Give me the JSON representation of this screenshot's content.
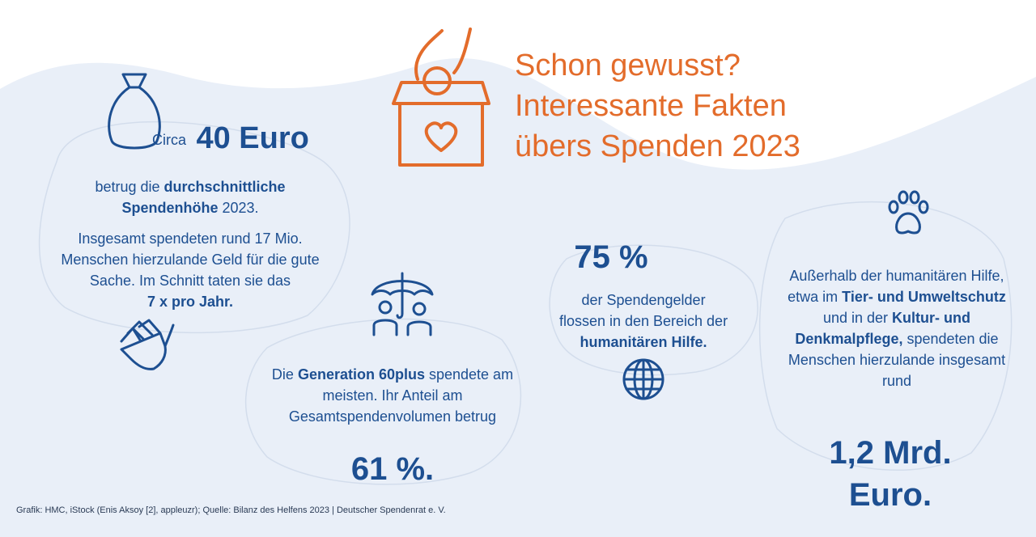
{
  "title": {
    "line1": "Schon gewusst?",
    "line2": "Interessante Fakten",
    "line3": "übers Spenden 2023"
  },
  "fact_average": {
    "prefix": "Circa",
    "amount": "40 Euro",
    "text_before": "betrug die ",
    "text_bold": "durchschnittliche Spendenhöhe",
    "text_after": " 2023.",
    "detail": "Insgesamt spendeten rund 17 Mio. Menschen hierzulande Geld für die gute Sache. Im Schnitt taten sie das",
    "detail_bold": "7 x pro Jahr."
  },
  "fact_generation": {
    "text_before": "Die ",
    "text_bold": "Generation 60plus",
    "text_after": " spendete am meisten. Ihr Anteil am Gesamtspendenvolumen betrug",
    "value": "61 %."
  },
  "fact_humanitarian": {
    "value": "75 %",
    "text_before": "der Spendengelder flossen in den Bereich der ",
    "text_bold": "humanitären Hilfe."
  },
  "fact_other": {
    "text_1": "Außerhalb der humanitären Hilfe, etwa im ",
    "bold_1": "Tier- und Umweltschutz",
    "text_2": " und in der ",
    "bold_2": "Kultur- und Denkmalpflege,",
    "text_3": " spendeten die Menschen hierzulande insgesamt rund",
    "value_line1": "1,2 Mrd.",
    "value_line2": "Euro."
  },
  "source": "Grafik: HMC, iStock (Enis Aksoy [2], appleuzr); Quelle: Bilanz des Helfens 2023 | Deutscher Spendenrat e. V.",
  "colors": {
    "accent_orange": "#e36c2b",
    "text_blue": "#1d4f91",
    "background_light": "#e9eff8"
  },
  "icons": [
    "donation-box-icon",
    "money-bag-icon",
    "hand-icon",
    "umbrella-family-icon",
    "globe-icon",
    "paw-icon"
  ]
}
